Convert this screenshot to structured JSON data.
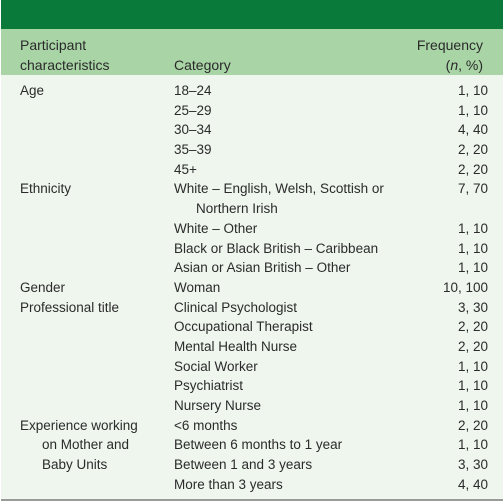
{
  "headers": {
    "participant_line1": "Participant",
    "participant_line2": "characteristics",
    "category": "Category",
    "frequency_line1": "Frequency",
    "frequency_n": "n",
    "frequency_rest": ", %)",
    "frequency_open": "("
  },
  "rows": [
    {
      "c1": "Age",
      "c2": "18–24",
      "c3": "1, 10"
    },
    {
      "c1": "",
      "c2": "25–29",
      "c3": "1, 10"
    },
    {
      "c1": "",
      "c2": "30–34",
      "c3": "4, 40"
    },
    {
      "c1": "",
      "c2": "35–39",
      "c3": "2, 20"
    },
    {
      "c1": "",
      "c2": "45+",
      "c3": "2, 20"
    },
    {
      "c1": "Ethnicity",
      "c2": "White – English, Welsh, Scottish or",
      "c3": "7, 70"
    },
    {
      "c1": "",
      "c2": "Northern Irish",
      "c3": ""
    },
    {
      "c1": "",
      "c2": "White – Other",
      "c3": "1, 10"
    },
    {
      "c1": "",
      "c2": "Black or Black British – Caribbean",
      "c3": "1, 10"
    },
    {
      "c1": "",
      "c2": "Asian or Asian British – Other",
      "c3": "1, 10"
    },
    {
      "c1": "Gender",
      "c2": "Woman",
      "c3": "10, 100"
    },
    {
      "c1": "Professional title",
      "c2": "Clinical Psychologist",
      "c3": "3, 30"
    },
    {
      "c1": "",
      "c2": "Occupational Therapist",
      "c3": "2, 20"
    },
    {
      "c1": "",
      "c2": "Mental Health Nurse",
      "c3": "2, 20"
    },
    {
      "c1": "",
      "c2": "Social Worker",
      "c3": "1, 10"
    },
    {
      "c1": "",
      "c2": "Psychiatrist",
      "c3": "1, 10"
    },
    {
      "c1": "",
      "c2": "Nursery Nurse",
      "c3": "1, 10"
    },
    {
      "c1": "Experience working",
      "c2": "<6 months",
      "c3": "2, 20"
    },
    {
      "c1": "on Mother and",
      "c2": "Between 6 months to 1 year",
      "c3": "1, 10"
    },
    {
      "c1": "Baby Units",
      "c2": "Between 1 and 3 years",
      "c3": "3, 30"
    },
    {
      "c1": "",
      "c2": "More than 3 years",
      "c3": "4, 40"
    }
  ],
  "indent_c1_rows": [
    18,
    19
  ],
  "indent_c2_rows": [
    6
  ],
  "colors": {
    "top_bar": "#0a7a3a",
    "header_band": "#a9d5a6",
    "body_bg": "#eef6ee"
  }
}
